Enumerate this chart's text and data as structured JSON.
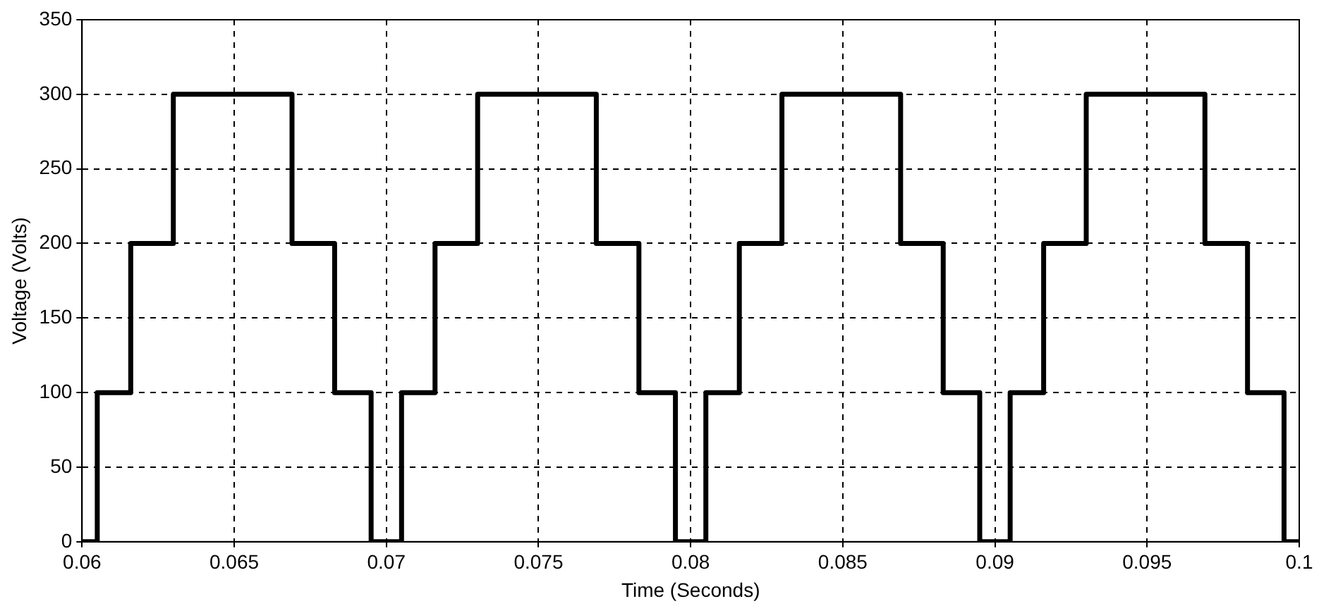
{
  "chart_data": {
    "type": "step",
    "xlabel": "Time (Seconds)",
    "ylabel": "Voltage (Volts)",
    "series": [
      {
        "color": "#000000",
        "x": [
          0.06,
          0.0605,
          0.0616,
          0.063,
          0.0669,
          0.0683,
          0.0695,
          0.0705,
          0.0716,
          0.073,
          0.0769,
          0.0783,
          0.0795,
          0.0805,
          0.0816,
          0.083,
          0.0869,
          0.0883,
          0.0895,
          0.0905,
          0.0916,
          0.093,
          0.0969,
          0.0983,
          0.0995,
          0.1
        ],
        "values": [
          0,
          100,
          200,
          300,
          200,
          100,
          0,
          100,
          200,
          300,
          200,
          100,
          0,
          100,
          200,
          300,
          200,
          100,
          0,
          100,
          200,
          300,
          200,
          100,
          0,
          0
        ]
      }
    ],
    "xlim": [
      0.06,
      0.1
    ],
    "xticks": [
      0.06,
      0.065,
      0.07,
      0.075,
      0.08,
      0.085,
      0.09,
      0.095,
      0.1
    ],
    "ylim": [
      0,
      350
    ],
    "yticks": [
      0,
      50,
      100,
      150,
      200,
      250,
      300,
      350
    ],
    "grid": true,
    "line_style": "solid",
    "marker": "none",
    "legend": false
  }
}
